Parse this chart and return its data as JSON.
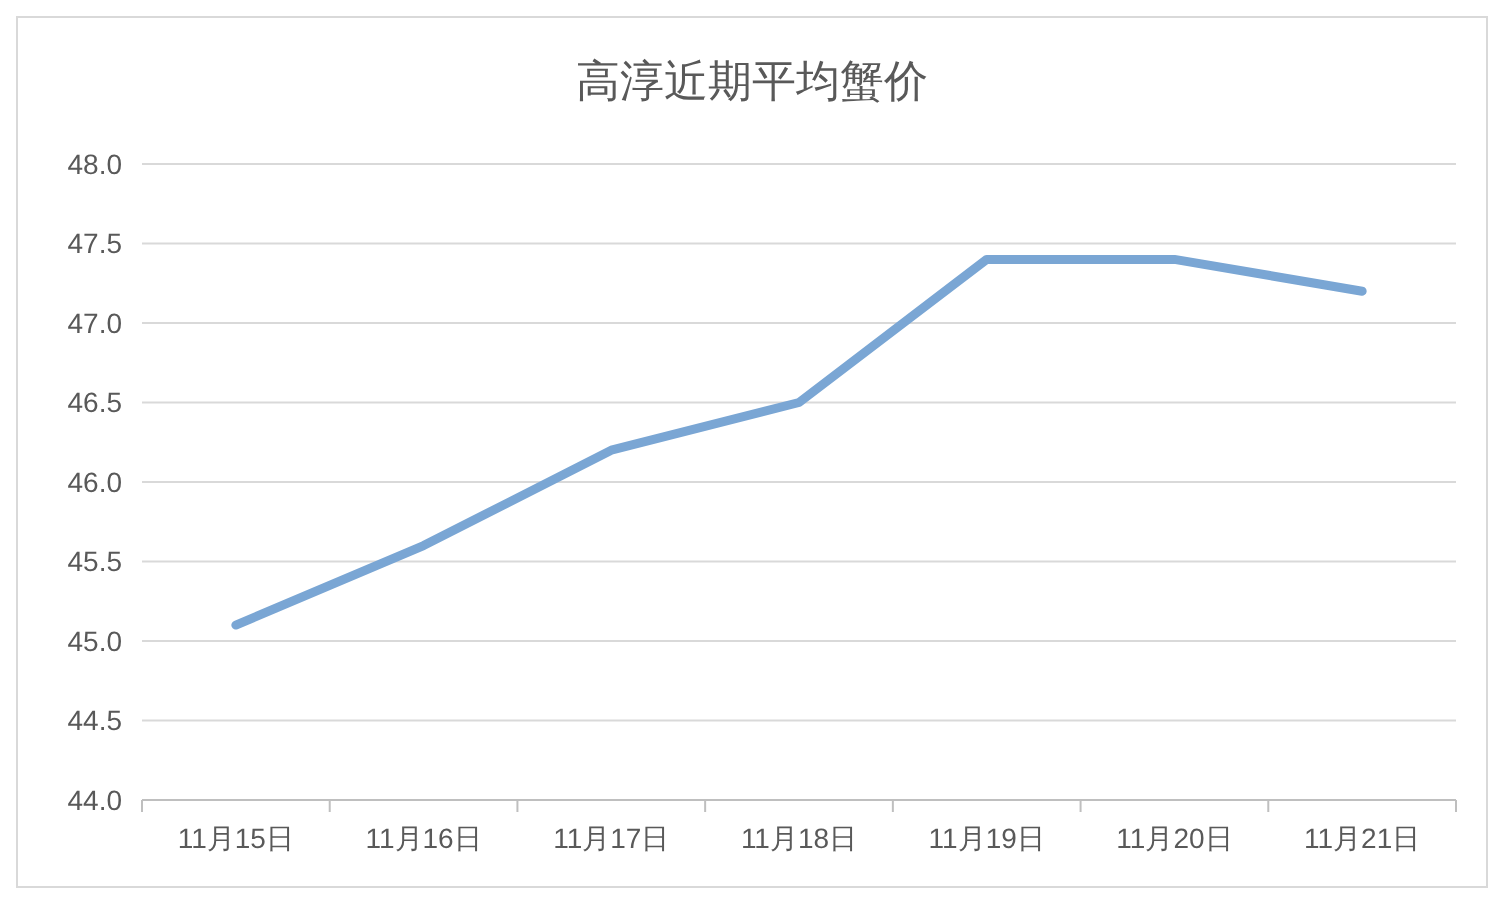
{
  "chart_data": {
    "type": "line",
    "title": "高淳近期平均蟹价",
    "categories": [
      "11月15日",
      "11月16日",
      "11月17日",
      "11月18日",
      "11月19日",
      "11月20日",
      "11月21日"
    ],
    "series": [
      {
        "color": "#7aa6d4",
        "values": [
          45.1,
          45.6,
          46.2,
          46.5,
          47.4,
          47.4,
          47.2
        ]
      }
    ],
    "ylim": [
      44,
      48
    ],
    "yticks": [
      {
        "value": 44,
        "label": "44.0"
      },
      {
        "value": 44.5,
        "label": "44.5"
      },
      {
        "value": 45,
        "label": "45.0"
      },
      {
        "value": 45.5,
        "label": "45.5"
      },
      {
        "value": 46,
        "label": "46.0"
      },
      {
        "value": 46.5,
        "label": "46.5"
      },
      {
        "value": 47,
        "label": "47.0"
      },
      {
        "value": 47.5,
        "label": "47.5"
      },
      {
        "value": 48,
        "label": "48.0"
      }
    ],
    "grid": "y",
    "marker": "none",
    "line_style": "solid"
  }
}
